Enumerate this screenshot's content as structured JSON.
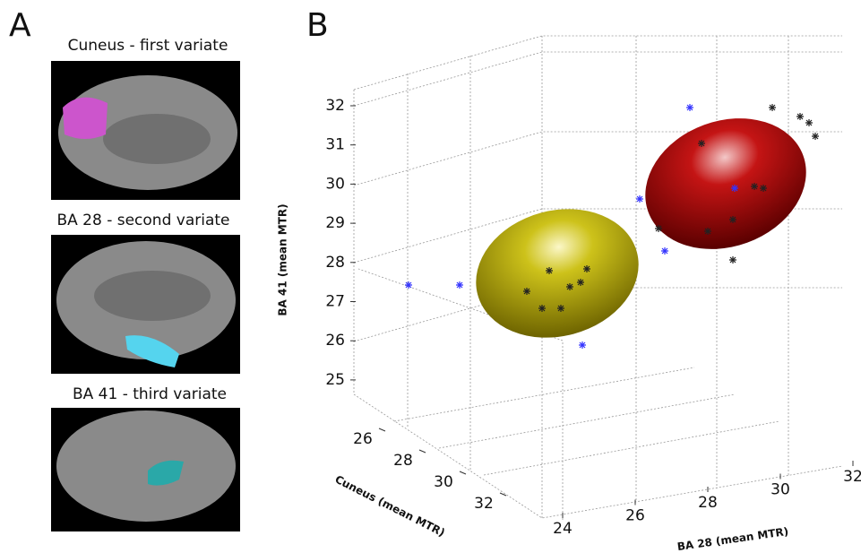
{
  "panel_a": {
    "letter": "A",
    "images": [
      {
        "title": "Cuneus - first variate"
      },
      {
        "title": "BA 28 - second variate"
      },
      {
        "title": "BA 41 - third variate"
      }
    ]
  },
  "panel_b": {
    "letter": "B",
    "z_axis": {
      "label": "BA 41 (mean MTR)",
      "ticks": [
        25,
        26,
        27,
        28,
        29,
        30,
        31,
        32
      ]
    },
    "y_axis": {
      "label": "Cuneus (mean MTR)",
      "ticks": [
        26,
        28,
        30,
        32
      ]
    },
    "x_axis": {
      "label": "BA 28 (mean MTR)",
      "ticks": [
        24,
        26,
        28,
        30,
        32
      ]
    }
  }
}
